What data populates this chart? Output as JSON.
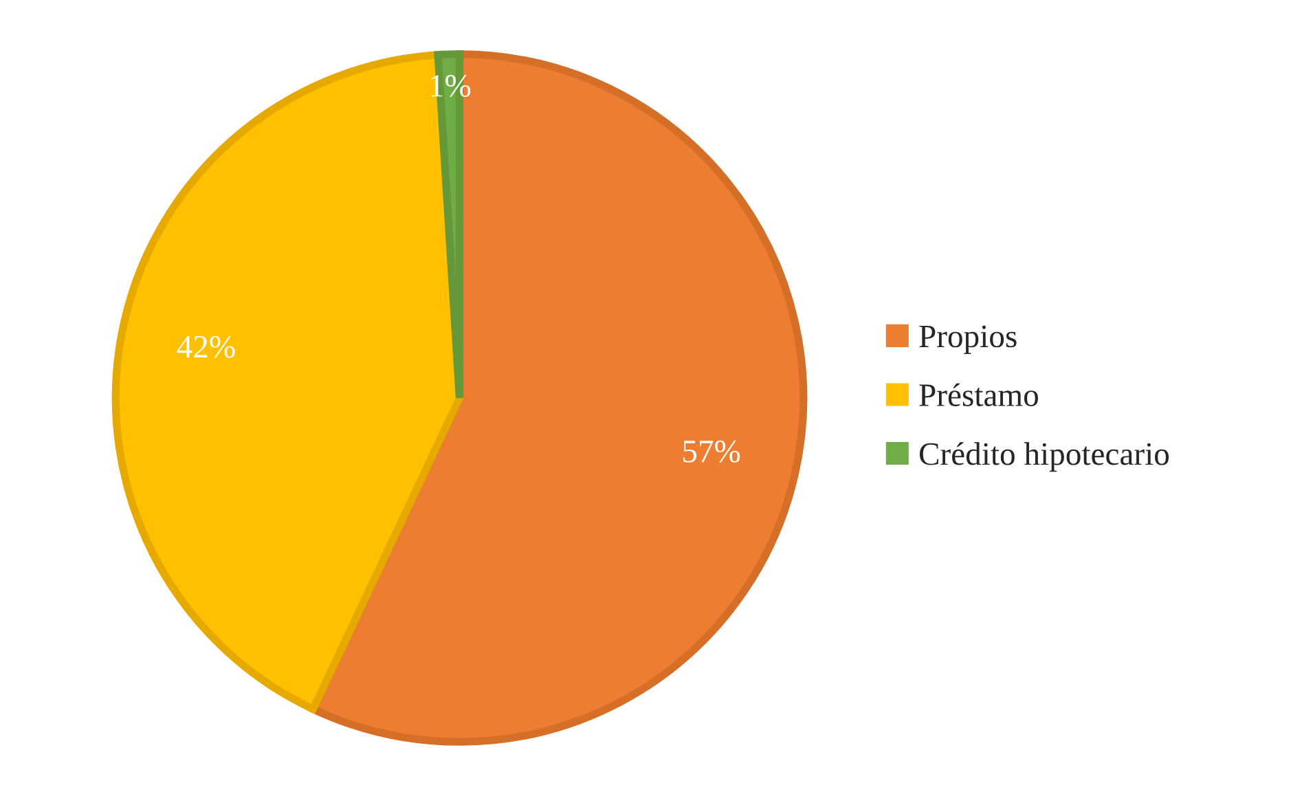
{
  "chart_data": {
    "type": "pie",
    "categories": [
      "Propios",
      "Préstamo",
      "Crédito hipotecario"
    ],
    "values": [
      57,
      42,
      1
    ],
    "value_labels": [
      "57%",
      "42%",
      "1%"
    ],
    "colors": [
      "#ed7d31",
      "#ffc000",
      "#70ad47"
    ],
    "legend": "right"
  }
}
